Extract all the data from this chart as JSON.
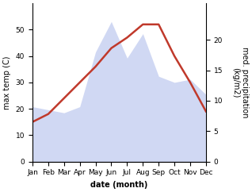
{
  "months": [
    "Jan",
    "Feb",
    "Mar",
    "Apr",
    "May",
    "Jun",
    "Jul",
    "Aug",
    "Sep",
    "Oct",
    "Nov",
    "Dec"
  ],
  "temperature": [
    15,
    18,
    24,
    30,
    36,
    43,
    47,
    52,
    52,
    40,
    30,
    19
  ],
  "precipitation": [
    9,
    8.5,
    8,
    9,
    18,
    23,
    17,
    21,
    14,
    13,
    13.5,
    11
  ],
  "temp_ylim": [
    0,
    60
  ],
  "precip_ylim": [
    0,
    26
  ],
  "temp_yticks": [
    0,
    10,
    20,
    30,
    40,
    50
  ],
  "precip_yticks": [
    0,
    5,
    10,
    15,
    20
  ],
  "xlabel": "date (month)",
  "ylabel_left": "max temp (C)",
  "ylabel_right": "med. precipitation\n(kg/m2)",
  "fill_color": "#b8c4ed",
  "fill_alpha": 0.65,
  "line_color": "#c0392b",
  "line_width": 1.8,
  "bg_color": "#ffffff",
  "label_fontsize": 7,
  "tick_fontsize": 6.5
}
